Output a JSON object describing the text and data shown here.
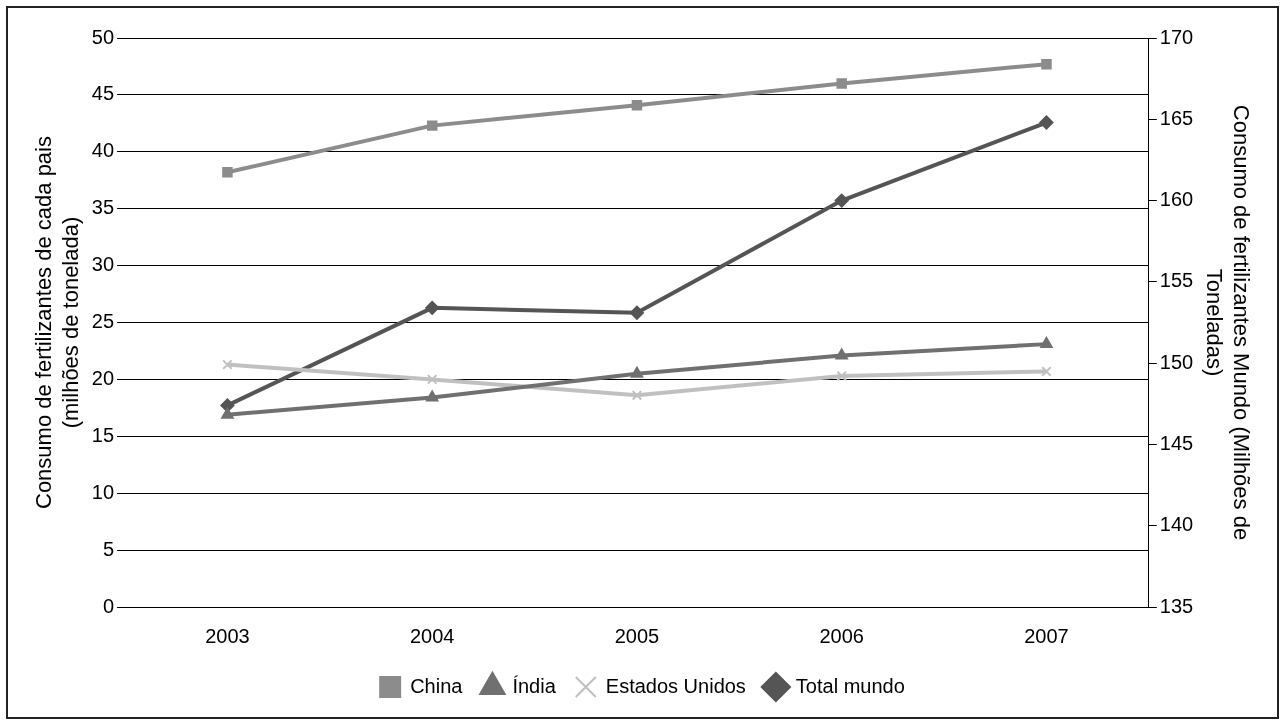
{
  "chart_data": {
    "type": "line",
    "categories": [
      "2003",
      "2004",
      "2005",
      "2006",
      "2007"
    ],
    "ylabel": "Consumo de fertilizantes de cada pais\n(milhões de tonelada)",
    "y2label": "Consumo de fertilizantes Mundo (Milhões de\nToneladas)",
    "ylim": [
      0,
      50
    ],
    "yticks": [
      0,
      5,
      10,
      15,
      20,
      25,
      30,
      35,
      40,
      45,
      50
    ],
    "y2lim": [
      135,
      170
    ],
    "y2ticks": [
      135,
      140,
      145,
      150,
      155,
      160,
      165,
      170
    ],
    "grid": "y",
    "legend": "bottom",
    "series": [
      {
        "name": "China",
        "color": "#8c8c8c",
        "marker": "square",
        "values": [
          38.2,
          42.3,
          44.1,
          46.0,
          47.7
        ]
      },
      {
        "name": "Índia",
        "color": "#707070",
        "marker": "triangle",
        "values": [
          16.9,
          18.4,
          20.5,
          22.1,
          23.1
        ]
      },
      {
        "name": "Estados Unidos",
        "color": "#c0c0c0",
        "marker": "cross",
        "values": [
          21.3,
          20.0,
          18.6,
          20.3,
          20.7
        ]
      },
      {
        "name": "Total mundo",
        "color": "#555555",
        "marker": "diamond",
        "axis": "y2",
        "values": [
          147.4,
          153.4,
          153.1,
          160.0,
          164.8
        ]
      }
    ]
  }
}
